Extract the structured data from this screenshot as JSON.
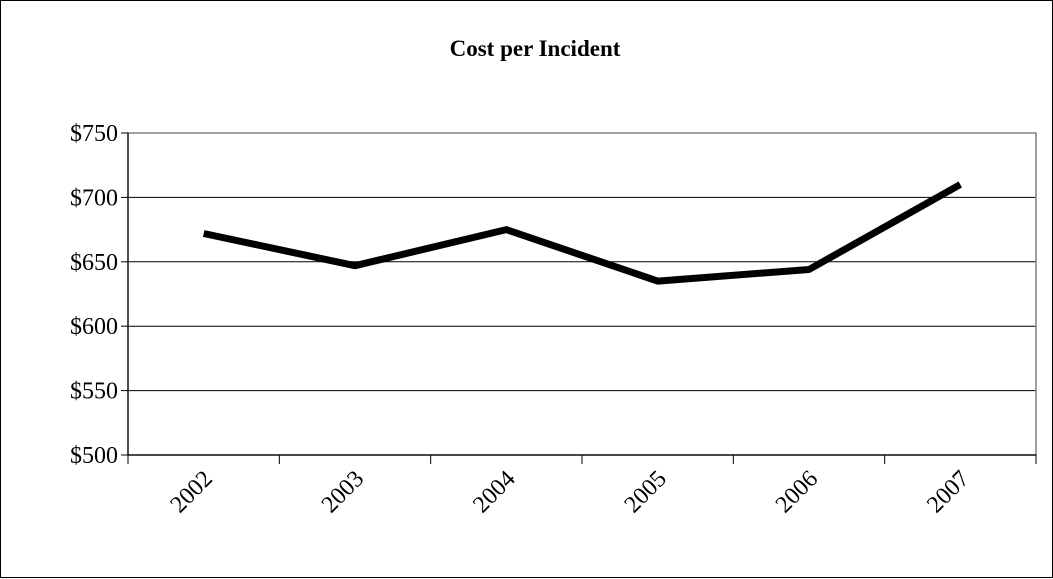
{
  "chart_data": {
    "type": "line",
    "title": "Cost per Incident",
    "xlabel": "",
    "ylabel": "",
    "categories": [
      "2002",
      "2003",
      "2004",
      "2005",
      "2006",
      "2007"
    ],
    "series": [
      {
        "values": [
          672,
          647,
          675,
          635,
          644,
          710
        ]
      }
    ],
    "ylim": [
      500,
      750
    ],
    "yticks": [
      500,
      550,
      600,
      650,
      700,
      750
    ],
    "ytick_labels": [
      "$500",
      "$550",
      "$600",
      "$650",
      "$700",
      "$750"
    ],
    "grid": "horizontal",
    "legend": "none",
    "colors": {
      "line": "#000000",
      "grid": "#000000",
      "plot_border": "#808080"
    }
  }
}
